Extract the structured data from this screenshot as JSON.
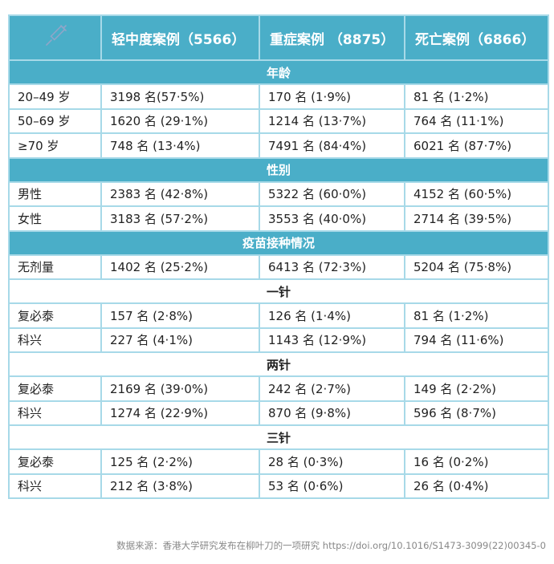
{
  "table": {
    "header": [
      "轻中度案例（5566）",
      "重症案例 （8875）",
      "死亡案例（6866）"
    ],
    "sections": [
      {
        "title": "年龄",
        "rows": [
          [
            "20–49 岁",
            "3198 名(57·5%)",
            "170 名 (1·9%)",
            "81 名 (1·2%)"
          ],
          [
            "50–69 岁",
            "1620 名 (29·1%)",
            "1214 名 (13·7%)",
            "764 名 (11·1%)"
          ],
          [
            "≥70 岁",
            "748 名 (13·4%)",
            "7491 名 (84·4%)",
            "6021 名 (87·7%)"
          ]
        ]
      },
      {
        "title": "性别",
        "rows": [
          [
            "男性",
            "2383 名 (42·8%)",
            "5322 名 (60·0%)",
            "4152 名 (60·5%)"
          ],
          [
            "女性",
            "3183 名 (57·2%)",
            "3553 名 (40·0%)",
            "2714 名 (39·5%)"
          ]
        ]
      },
      {
        "title": "疫苗接种情况",
        "rows": [
          [
            "无剂量",
            "1402 名 (25·2%)",
            "6413 名 (72·3%)",
            "5204 名 (75·8%)"
          ]
        ]
      },
      {
        "title": "一针",
        "rows": [
          [
            "复必泰",
            "157 名 (2·8%)",
            "126 名 (1·4%)",
            "81 名 (1·2%)"
          ],
          [
            "科兴",
            "227 名 (4·1%)",
            "1143 名 (12·9%)",
            "794 名 (11·6%)"
          ]
        ]
      },
      {
        "title": "两针",
        "rows": [
          [
            "复必泰",
            "2169 名 (39·0%)",
            "242 名 (2·7%)",
            "149 名 (2·2%)"
          ],
          [
            "科兴",
            "1274 名 (22·9%)",
            "870 名 (9·8%)",
            "596 名 (8·7%)"
          ]
        ]
      },
      {
        "title": "三针",
        "rows": [
          [
            "复必泰",
            "125 名 (2·2%)",
            "28 名 (0·3%)",
            "16 名 (0·2%)"
          ],
          [
            "科兴",
            "212 名 (3·8%)",
            "53 名 (0·6%)",
            "26 名 (0·4%)"
          ]
        ]
      }
    ]
  },
  "source": "数据来源：香港大学研究发布在柳叶刀的一项研究 https://doi.org/10.1016/S1473-3099(22)00345-0"
}
